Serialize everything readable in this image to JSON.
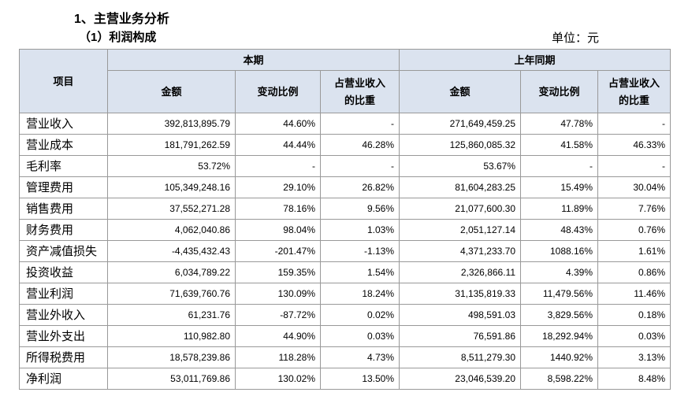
{
  "heading": "1、主营业务分析",
  "subheading": "（1）利润构成",
  "unit": "单位：元",
  "table": {
    "header": {
      "item": "项目",
      "current": "本期",
      "previous": "上年同期",
      "columns": [
        [
          "金额"
        ],
        [
          "变动比例"
        ],
        [
          "占营业收入",
          "的比重"
        ],
        [
          "金额"
        ],
        [
          "变动比例"
        ],
        [
          "占营业收入",
          "的比重"
        ]
      ]
    },
    "rows": [
      [
        "营业收入",
        "392,813,895.79",
        "44.60%",
        "-",
        "271,649,459.25",
        "47.78%",
        "-"
      ],
      [
        "营业成本",
        "181,791,262.59",
        "44.44%",
        "46.28%",
        "125,860,085.32",
        "41.58%",
        "46.33%"
      ],
      [
        "毛利率",
        "53.72%",
        "-",
        "-",
        "53.67%",
        "-",
        "-"
      ],
      [
        "管理费用",
        "105,349,248.16",
        "29.10%",
        "26.82%",
        "81,604,283.25",
        "15.49%",
        "30.04%"
      ],
      [
        "销售费用",
        "37,552,271.28",
        "78.16%",
        "9.56%",
        "21,077,600.30",
        "11.89%",
        "7.76%"
      ],
      [
        "财务费用",
        "4,062,040.86",
        "98.04%",
        "1.03%",
        "2,051,127.14",
        "48.43%",
        "0.76%"
      ],
      [
        "资产减值损失",
        "-4,435,432.43",
        "-201.47%",
        "-1.13%",
        "4,371,233.70",
        "1088.16%",
        "1.61%"
      ],
      [
        "投资收益",
        "6,034,789.22",
        "159.35%",
        "1.54%",
        "2,326,866.11",
        "4.39%",
        "0.86%"
      ],
      [
        "营业利润",
        "71,639,760.76",
        "130.09%",
        "18.24%",
        "31,135,819.33",
        "11,479.56%",
        "11.46%"
      ],
      [
        "营业外收入",
        "61,231.76",
        "-87.72%",
        "0.02%",
        "498,591.03",
        "3,829.56%",
        "0.18%"
      ],
      [
        "营业外支出",
        "110,982.80",
        "44.90%",
        "0.03%",
        "76,591.86",
        "18,292.94%",
        "0.03%"
      ],
      [
        "所得税费用",
        "18,578,239.86",
        "118.28%",
        "4.73%",
        "8,511,279.30",
        "1440.92%",
        "3.13%"
      ],
      [
        "净利润",
        "53,011,769.86",
        "130.02%",
        "13.50%",
        "23,046,539.20",
        "8,598.22%",
        "8.48%"
      ]
    ]
  }
}
